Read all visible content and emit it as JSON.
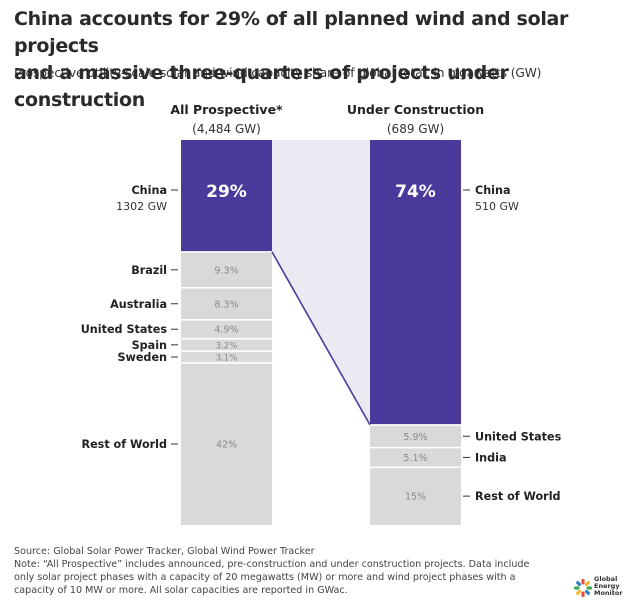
{
  "title_line1": "China accounts for 29% of all planned wind and solar projects",
  "title_line2": "and a massive three-quarters of projects under construction",
  "subtitle": "Prospective utility-scale solar and wind capacity share of global total, in gigawatts (GW)",
  "chart_data": {
    "type": "bar",
    "stacked": true,
    "columns": [
      {
        "name": "All Prospective*",
        "total": "(4,484 GW)",
        "segments": [
          {
            "label": "China",
            "sublabel": "1302 GW",
            "value": 29,
            "text": "29%",
            "highlight": true
          },
          {
            "label": "Brazil",
            "value": 9.3,
            "text": "9.3%"
          },
          {
            "label": "Australia",
            "value": 8.3,
            "text": "8.3%"
          },
          {
            "label": "United States",
            "value": 4.9,
            "text": "4.9%"
          },
          {
            "label": "Spain",
            "value": 3.2,
            "text": "3.2%"
          },
          {
            "label": "Sweden",
            "value": 3.1,
            "text": "3.1%"
          },
          {
            "label": "Rest of World",
            "value": 42,
            "text": "42%"
          }
        ]
      },
      {
        "name": "Under Construction",
        "total": "(689 GW)",
        "segments": [
          {
            "label": "China",
            "sublabel": "510 GW",
            "value": 74,
            "text": "74%",
            "highlight": true
          },
          {
            "label": "United States",
            "value": 5.9,
            "text": "5.9%"
          },
          {
            "label": "India",
            "value": 5.1,
            "text": "5.1%"
          },
          {
            "label": "Rest of World",
            "value": 15,
            "text": "15%"
          }
        ]
      }
    ],
    "colors": {
      "highlight": "#4b3a9c",
      "other": "#d9d9d9",
      "connector": "#ebeaf3",
      "divider": "#ffffff"
    }
  },
  "footer": {
    "source": "Source: Global Solar Power Tracker, Global Wind Power Tracker",
    "note1": "Note: “All Prospective” includes announced, pre-construction and under construction projects. Data include",
    "note2": "only solar project phases with a capacity of 20 megawatts (MW) or more and wind project phases with a",
    "note3": "capacity of 10 MW or more. All solar capacities are reported in GWac."
  },
  "logo": {
    "line1": "Global",
    "line2": "Energy",
    "line3": "Monitor",
    "colors": [
      "#e94e3c",
      "#f6b42b",
      "#3aa856",
      "#2e7fc1"
    ]
  }
}
